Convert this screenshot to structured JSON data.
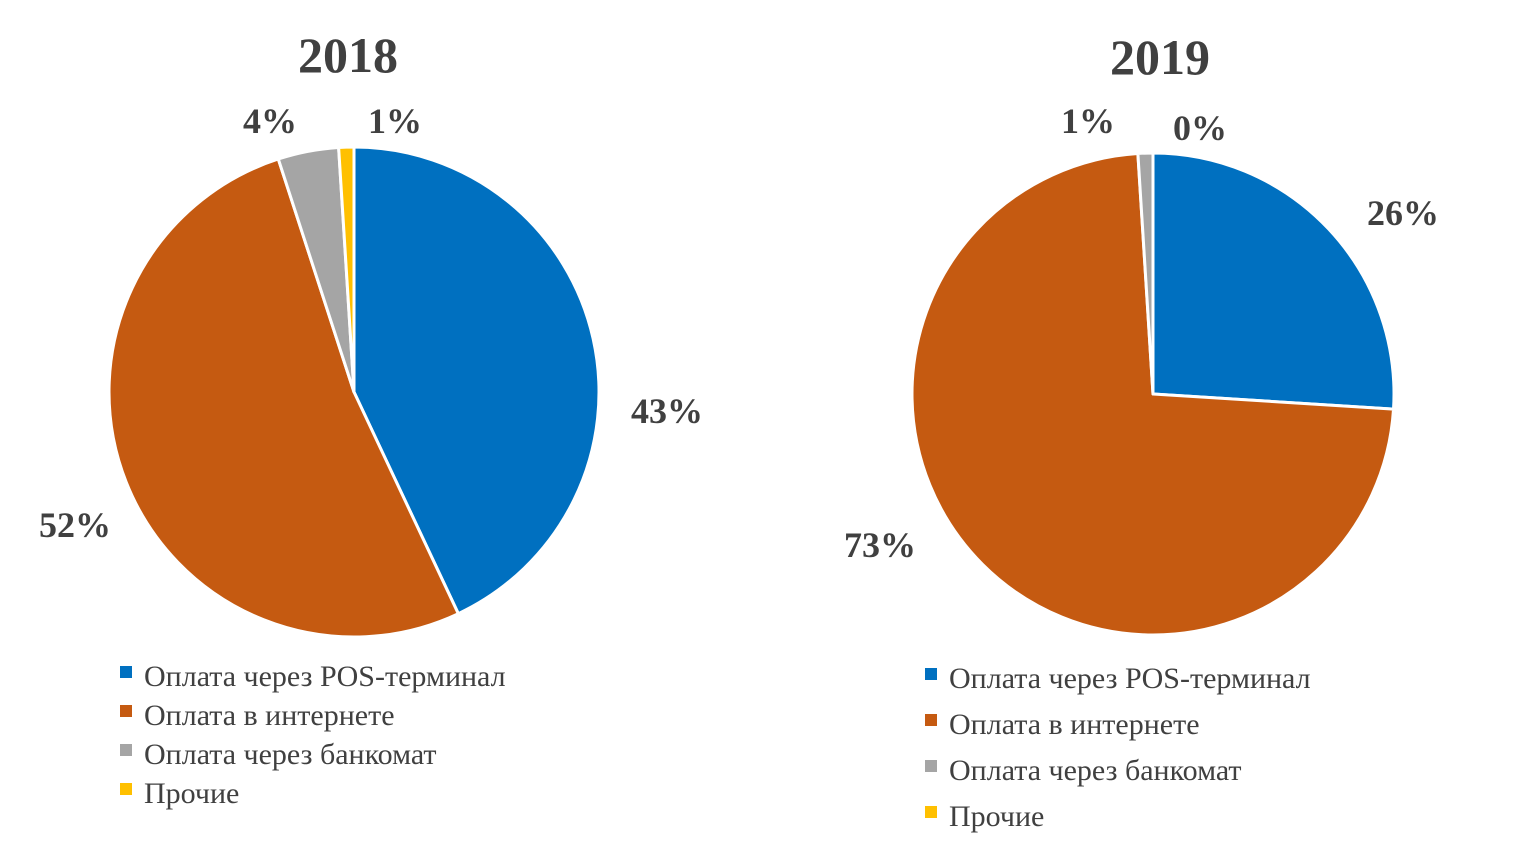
{
  "chart_data": [
    {
      "type": "pie",
      "title": "2018",
      "categories": [
        "Оплата через POS-терминал",
        "Оплата в интернете",
        "Оплата через банкомат",
        "Прочие"
      ],
      "values": [
        43,
        52,
        4,
        1
      ],
      "labels": [
        "43%",
        "52%",
        "4%",
        "1%"
      ],
      "colors": [
        "#0070C0",
        "#C55A11",
        "#A5A5A5",
        "#FFC000"
      ],
      "legend_position": "bottom-left"
    },
    {
      "type": "pie",
      "title": "2019",
      "categories": [
        "Оплата через POS-терминал",
        "Оплата в интернете",
        "Оплата через банкомат",
        "Прочие"
      ],
      "values": [
        26,
        73,
        1,
        0
      ],
      "labels": [
        "26%",
        "73%",
        "1%",
        "0%"
      ],
      "colors": [
        "#0070C0",
        "#C55A11",
        "#A5A5A5",
        "#FFC000"
      ],
      "legend_position": "bottom-left"
    }
  ]
}
